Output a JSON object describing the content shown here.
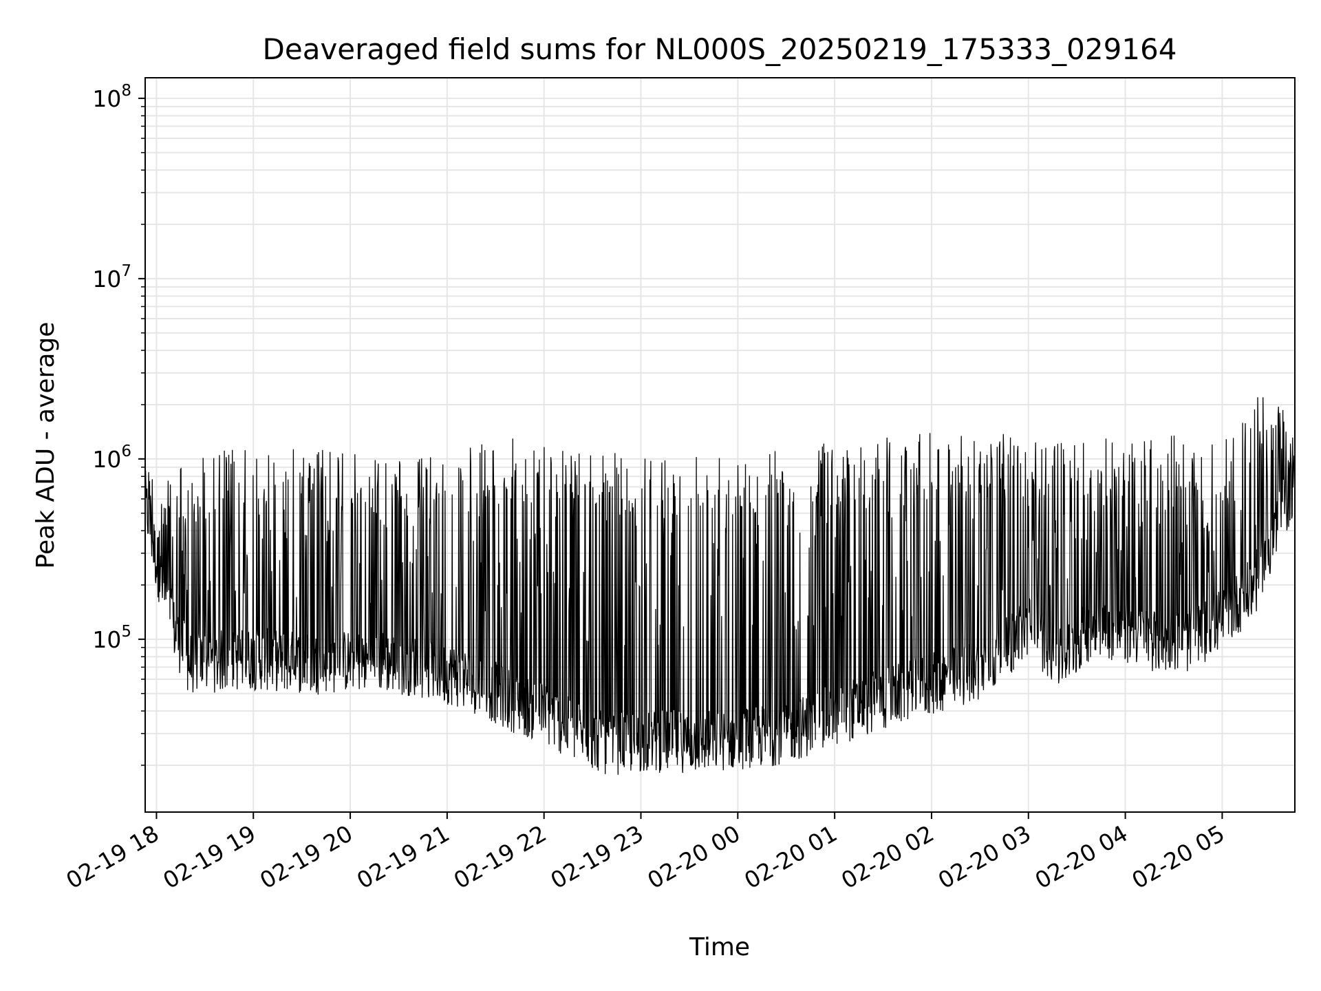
{
  "chart_data": {
    "type": "line",
    "title": "Deaveraged field sums for NL000S_20250219_175333_029164",
    "xlabel": "Time",
    "ylabel": "Peak ADU - average",
    "y_scale": "log",
    "ylim": [
      11000,
      130000000
    ],
    "xlim": [
      "2025-02-19 17:53",
      "2025-02-20 05:45"
    ],
    "y_ticks": [
      {
        "value": 100000,
        "base": "10",
        "exp": "5"
      },
      {
        "value": 1000000,
        "base": "10",
        "exp": "6"
      },
      {
        "value": 10000000,
        "base": "10",
        "exp": "7"
      },
      {
        "value": 100000000,
        "base": "10",
        "exp": "8"
      }
    ],
    "x_ticks": [
      {
        "time": "2025-02-19 18:00",
        "label": "02-19 18"
      },
      {
        "time": "2025-02-19 19:00",
        "label": "02-19 19"
      },
      {
        "time": "2025-02-19 20:00",
        "label": "02-19 20"
      },
      {
        "time": "2025-02-19 21:00",
        "label": "02-19 21"
      },
      {
        "time": "2025-02-19 22:00",
        "label": "02-19 22"
      },
      {
        "time": "2025-02-19 23:00",
        "label": "02-19 23"
      },
      {
        "time": "2025-02-20 00:00",
        "label": "02-20 00"
      },
      {
        "time": "2025-02-20 01:00",
        "label": "02-20 01"
      },
      {
        "time": "2025-02-20 02:00",
        "label": "02-20 02"
      },
      {
        "time": "2025-02-20 03:00",
        "label": "02-20 03"
      },
      {
        "time": "2025-02-20 04:00",
        "label": "02-20 04"
      },
      {
        "time": "2025-02-20 05:00",
        "label": "02-20 05"
      }
    ],
    "grid": true,
    "line_color": "#000000",
    "grid_color": "#e6e6e6",
    "series": [
      {
        "x": [
          "2025-02-19 17:53",
          "2025-02-19 18:00",
          "2025-02-19 18:10",
          "2025-02-19 18:20",
          "2025-02-19 18:40",
          "2025-02-19 19:00",
          "2025-02-19 19:20",
          "2025-02-19 19:40",
          "2025-02-19 20:00",
          "2025-02-19 20:20",
          "2025-02-19 20:40",
          "2025-02-19 21:00",
          "2025-02-19 21:20",
          "2025-02-19 21:40",
          "2025-02-19 22:00",
          "2025-02-19 22:20",
          "2025-02-19 22:40",
          "2025-02-19 23:00",
          "2025-02-19 23:20",
          "2025-02-19 23:40",
          "2025-02-20 00:00",
          "2025-02-20 00:20",
          "2025-02-20 00:40",
          "2025-02-20 01:00",
          "2025-02-20 01:20",
          "2025-02-20 01:40",
          "2025-02-20 02:00",
          "2025-02-20 02:20",
          "2025-02-20 02:40",
          "2025-02-20 03:00",
          "2025-02-20 03:20",
          "2025-02-20 03:40",
          "2025-02-20 04:00",
          "2025-02-20 04:20",
          "2025-02-20 04:40",
          "2025-02-20 05:00",
          "2025-02-20 05:20",
          "2025-02-20 05:45"
        ],
        "floor": [
          550000,
          250000,
          110000,
          68000,
          70000,
          72000,
          70000,
          68000,
          70000,
          70000,
          66000,
          60000,
          52000,
          42000,
          36000,
          28000,
          24000,
          25000,
          25000,
          25000,
          26000,
          27000,
          30000,
          35000,
          40000,
          46000,
          52000,
          58000,
          72000,
          110000,
          70000,
          110000,
          100000,
          90000,
          90000,
          120000,
          180000,
          700000
        ],
        "peak": [
          1300000,
          850000,
          950000,
          1000000,
          1200000,
          1100000,
          1300000,
          1150000,
          1100000,
          1050000,
          1000000,
          1100000,
          1200000,
          1300000,
          1250000,
          1200000,
          1100000,
          1000000,
          1100000,
          1100000,
          1150000,
          1150000,
          1200000,
          1250000,
          1300000,
          1400000,
          1450000,
          1450000,
          1400000,
          1300000,
          1350000,
          1300000,
          1300000,
          1350000,
          1350000,
          1200000,
          2500000,
          2000000
        ]
      }
    ]
  }
}
